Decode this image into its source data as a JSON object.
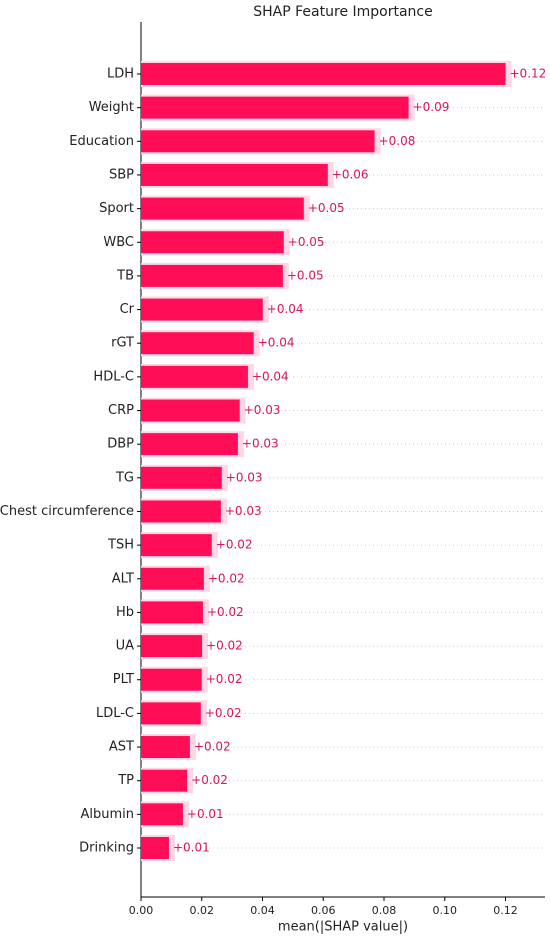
{
  "chart_data": {
    "type": "barh",
    "title": "SHAP Feature Importance",
    "x_label": "mean(|SHAP value|)",
    "categories": [
      "LDH",
      "Weight",
      "Education",
      "SBP",
      "Sport",
      "WBC",
      "TB",
      "Cr",
      "rGT",
      "HDL-C",
      "CRP",
      "DBP",
      "TG",
      "Chest circumference",
      "TSH",
      "ALT",
      "Hb",
      "UA",
      "PLT",
      "LDL-C",
      "AST",
      "TP",
      "Albumin",
      "Drinking"
    ],
    "values": [
      0.12,
      0.0881,
      0.0769,
      0.0615,
      0.0536,
      0.047,
      0.0467,
      0.0401,
      0.0371,
      0.0352,
      0.0325,
      0.0319,
      0.0266,
      0.0263,
      0.0233,
      0.0207,
      0.0204,
      0.0201,
      0.02,
      0.0197,
      0.0161,
      0.0152,
      0.0138,
      0.0092
    ],
    "value_labels": [
      "+0.12",
      "+0.09",
      "+0.08",
      "+0.06",
      "+0.05",
      "+0.05",
      "+0.05",
      "+0.04",
      "+0.04",
      "+0.04",
      "+0.03",
      "+0.03",
      "+0.03",
      "+0.03",
      "+0.02",
      "+0.02",
      "+0.02",
      "+0.02",
      "+0.02",
      "+0.02",
      "+0.02",
      "+0.02",
      "+0.01",
      "+0.01"
    ],
    "color": "#ff0d57",
    "label_color": "#d6165f",
    "xlim": [
      0,
      0.133
    ],
    "xticks": [
      {
        "value": 0,
        "label": "0.00"
      },
      0.02,
      0.04,
      0.06,
      0.08,
      {
        "value": 0.1,
        "label": "0.10"
      },
      0.12
    ],
    "grid": true
  }
}
